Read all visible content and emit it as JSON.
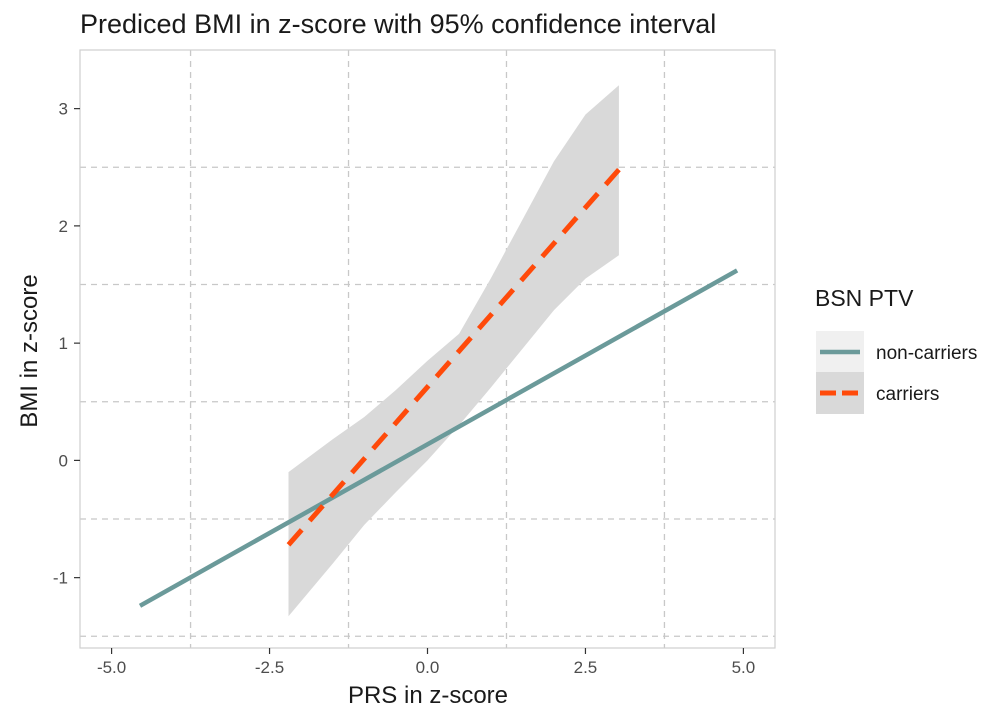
{
  "chart_data": {
    "type": "line",
    "title": "Prediced BMI in z-score with 95% confidence interval",
    "xlabel": "PRS in z-score",
    "ylabel": "BMI in z-score",
    "xlim": [
      -5.5,
      5.5
    ],
    "ylim": [
      -1.6,
      3.5
    ],
    "x_ticks": [
      -5.0,
      -2.5,
      0.0,
      2.5,
      5.0
    ],
    "x_tick_labels": [
      "-5.0",
      "-2.5",
      "0.0",
      "2.5",
      "5.0"
    ],
    "y_ticks": [
      -1,
      0,
      1,
      2,
      3
    ],
    "y_tick_labels": [
      "-1",
      "0",
      "1",
      "2",
      "3"
    ],
    "grid": true,
    "grid_style": "dashed",
    "legend": {
      "title": "BSN PTV",
      "position": "right"
    },
    "series": [
      {
        "name": "non-carriers",
        "color": "#6b9a9a",
        "line_style": "solid",
        "x": [
          -4.55,
          4.9
        ],
        "y": [
          -1.24,
          1.62
        ]
      },
      {
        "name": "carriers",
        "color": "#ff4a0a",
        "line_style": "dashed",
        "x": [
          -2.2,
          3.03
        ],
        "y": [
          -0.72,
          2.48
        ],
        "ci_band": {
          "color": "#d9d9d9",
          "x": [
            -2.2,
            -1.5,
            -1.0,
            -0.5,
            0.0,
            0.5,
            1.0,
            1.5,
            2.0,
            2.5,
            3.03
          ],
          "lower": [
            -1.33,
            -0.88,
            -0.55,
            -0.27,
            0.0,
            0.3,
            0.62,
            0.95,
            1.28,
            1.55,
            1.75
          ],
          "upper": [
            -0.1,
            0.18,
            0.37,
            0.6,
            0.85,
            1.08,
            1.55,
            2.05,
            2.55,
            2.95,
            3.2
          ]
        }
      }
    ]
  }
}
